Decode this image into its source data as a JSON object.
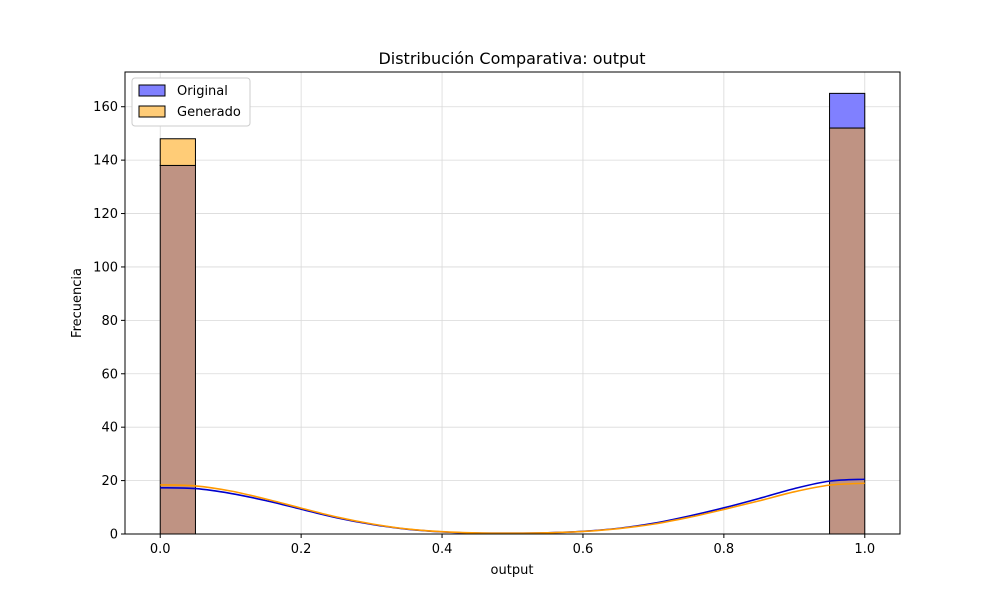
{
  "chart_data": {
    "type": "bar",
    "title": "Distribución Comparativa: output",
    "xlabel": "output",
    "ylabel": "Frecuencia",
    "xlim": [
      -0.05,
      1.05
    ],
    "ylim": [
      0,
      173
    ],
    "grid": true,
    "legend_position": "top-left",
    "x_ticks": [
      "0.0",
      "0.2",
      "0.4",
      "0.6",
      "0.8",
      "1.0"
    ],
    "y_ticks": [
      "0",
      "20",
      "40",
      "60",
      "80",
      "100",
      "120",
      "140",
      "160"
    ],
    "bins": [
      {
        "x_start": 0.0,
        "x_end": 0.05
      },
      {
        "x_start": 0.95,
        "x_end": 1.0
      }
    ],
    "series": [
      {
        "name": "Original",
        "color": "#8080ff",
        "kde_color": "#0000cc",
        "values": [
          138,
          165
        ],
        "kde": [
          [
            0.0,
            17.3
          ],
          [
            0.05,
            17.0
          ],
          [
            0.1,
            15.2
          ],
          [
            0.15,
            12.5
          ],
          [
            0.2,
            9.3
          ],
          [
            0.25,
            6.1
          ],
          [
            0.3,
            3.6
          ],
          [
            0.35,
            1.8
          ],
          [
            0.4,
            0.8
          ],
          [
            0.45,
            0.35
          ],
          [
            0.5,
            0.3
          ],
          [
            0.55,
            0.45
          ],
          [
            0.6,
            1.0
          ],
          [
            0.65,
            2.1
          ],
          [
            0.7,
            4.0
          ],
          [
            0.75,
            6.7
          ],
          [
            0.8,
            9.8
          ],
          [
            0.85,
            13.3
          ],
          [
            0.9,
            17.0
          ],
          [
            0.95,
            19.8
          ],
          [
            1.0,
            20.5
          ]
        ]
      },
      {
        "name": "Generado",
        "color": "#ffcc77",
        "kde_color": "#ff9900",
        "values": [
          148,
          152
        ],
        "kde": [
          [
            0.0,
            18.4
          ],
          [
            0.05,
            18.0
          ],
          [
            0.1,
            16.1
          ],
          [
            0.15,
            13.1
          ],
          [
            0.2,
            9.7
          ],
          [
            0.25,
            6.4
          ],
          [
            0.3,
            3.8
          ],
          [
            0.35,
            1.9
          ],
          [
            0.4,
            0.85
          ],
          [
            0.45,
            0.4
          ],
          [
            0.5,
            0.3
          ],
          [
            0.55,
            0.45
          ],
          [
            0.6,
            0.95
          ],
          [
            0.65,
            2.0
          ],
          [
            0.7,
            3.7
          ],
          [
            0.75,
            6.2
          ],
          [
            0.8,
            9.2
          ],
          [
            0.85,
            12.4
          ],
          [
            0.9,
            15.8
          ],
          [
            0.95,
            18.3
          ],
          [
            1.0,
            19.0
          ]
        ]
      }
    ],
    "overlap_color": "#bf9383"
  }
}
